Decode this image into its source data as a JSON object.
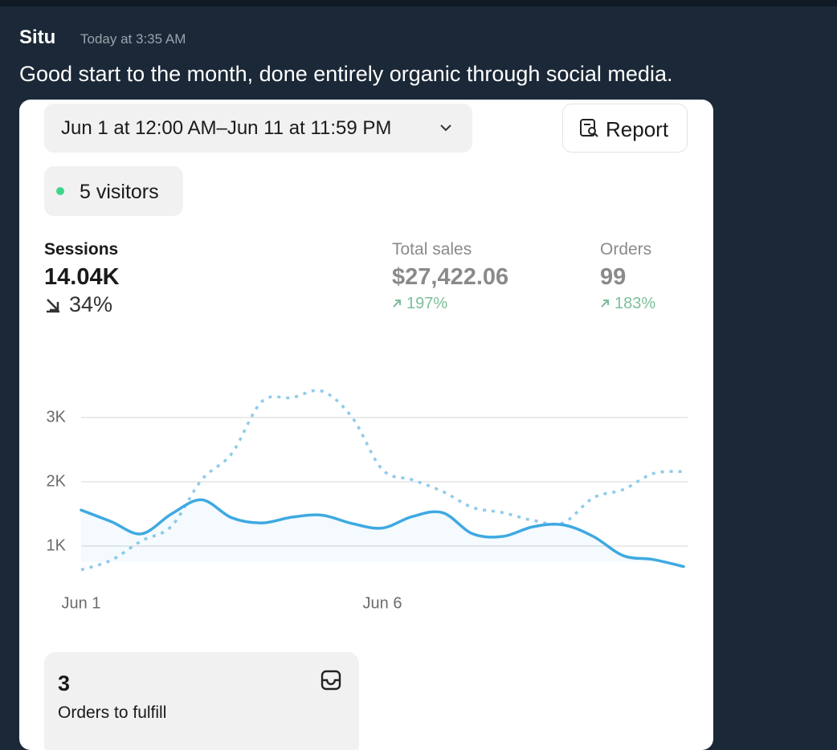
{
  "message": {
    "author": "Situ",
    "time": "Today at 3:35 AM",
    "text": "Good start to the month, done entirely organic through social media."
  },
  "card": {
    "date_range": "Jun 1 at 12:00 AM–Jun 11 at 11:59 PM",
    "report_button": "Report",
    "visitors": "5 visitors",
    "metrics": [
      {
        "label": "Sessions",
        "value": "14.04K",
        "change": "34%"
      },
      {
        "label": "Total sales",
        "value": "$27,422.06",
        "change": "197%"
      },
      {
        "label": "Orders",
        "value": "99",
        "change": "183%"
      }
    ],
    "fulfill": {
      "count": "3",
      "label": "Orders to fulfill"
    }
  },
  "chart_data": {
    "type": "line",
    "x": [
      1,
      1.5,
      2,
      2.5,
      3,
      3.5,
      4,
      4.5,
      5,
      5.5,
      6,
      6.5,
      7,
      7.5,
      8,
      8.5,
      9,
      9.5,
      10,
      10.5,
      11
    ],
    "xlim": [
      1,
      11
    ],
    "xticks": [
      {
        "value": 1,
        "label": "Jun 1"
      },
      {
        "value": 6,
        "label": "Jun 6"
      }
    ],
    "ylim": [
      0,
      3500
    ],
    "yticks": [
      {
        "value": 1000,
        "label": "1K"
      },
      {
        "value": 2000,
        "label": "2K"
      },
      {
        "value": 3000,
        "label": "3K"
      }
    ],
    "grid": true,
    "series": [
      {
        "color": "#3ea9e2",
        "style": "solid",
        "fill": true,
        "values": [
          1560,
          1380,
          1190,
          1500,
          1720,
          1440,
          1360,
          1450,
          1480,
          1350,
          1280,
          1460,
          1520,
          1190,
          1150,
          1300,
          1330,
          1150,
          850,
          790,
          680
        ]
      },
      {
        "color": "#8fcbea",
        "style": "dotted",
        "fill": false,
        "values": [
          630,
          780,
          1080,
          1310,
          2030,
          2440,
          3250,
          3310,
          3410,
          3000,
          2190,
          2030,
          1850,
          1600,
          1520,
          1400,
          1360,
          1750,
          1880,
          2130,
          2160
        ]
      }
    ]
  }
}
